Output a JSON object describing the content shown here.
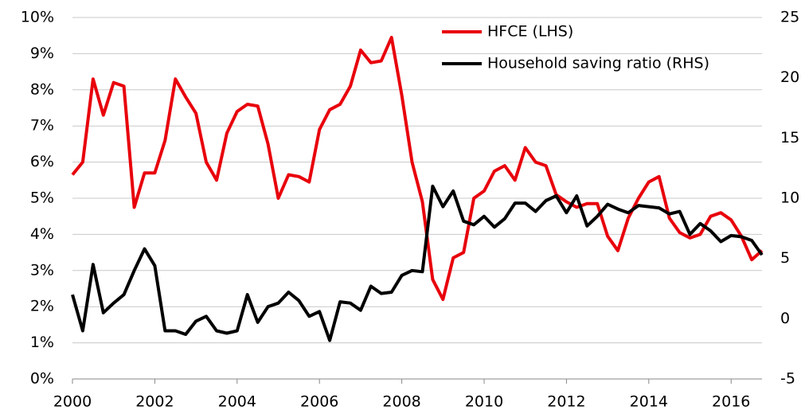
{
  "chart_data": {
    "type": "line",
    "x": [
      2000,
      2000.25,
      2000.5,
      2000.75,
      2001,
      2001.25,
      2001.5,
      2001.75,
      2002,
      2002.25,
      2002.5,
      2002.75,
      2003,
      2003.25,
      2003.5,
      2003.75,
      2004,
      2004.25,
      2004.5,
      2004.75,
      2005,
      2005.25,
      2005.5,
      2005.75,
      2006,
      2006.25,
      2006.5,
      2006.75,
      2007,
      2007.25,
      2007.5,
      2007.75,
      2008,
      2008.25,
      2008.5,
      2008.75,
      2009,
      2009.25,
      2009.5,
      2009.75,
      2010,
      2010.25,
      2010.5,
      2010.75,
      2011,
      2011.25,
      2011.5,
      2011.75,
      2012,
      2012.25,
      2012.5,
      2012.75,
      2013,
      2013.25,
      2013.5,
      2013.75,
      2014,
      2014.25,
      2014.5,
      2014.75,
      2015,
      2015.25,
      2015.5,
      2015.75,
      2016,
      2016.25,
      2016.5,
      2016.75
    ],
    "series": [
      {
        "name": "HFCE (LHS)",
        "color": "#e8000b",
        "values": [
          5.65,
          6.0,
          8.3,
          7.3,
          8.2,
          8.1,
          4.75,
          5.7,
          5.7,
          6.6,
          8.3,
          7.8,
          7.35,
          6.0,
          5.5,
          6.8,
          7.4,
          7.6,
          7.55,
          6.5,
          5.0,
          5.65,
          5.6,
          5.45,
          6.9,
          7.45,
          7.6,
          8.1,
          9.1,
          8.75,
          8.8,
          9.45,
          7.85,
          6.0,
          4.9,
          2.75,
          2.2,
          3.35,
          3.5,
          5.0,
          5.2,
          5.75,
          5.9,
          5.5,
          6.4,
          6.0,
          5.9,
          5.1,
          4.9,
          4.75,
          4.85,
          4.85,
          3.95,
          3.55,
          4.45,
          5.0,
          5.45,
          5.6,
          4.45,
          4.05,
          3.9,
          4.0,
          4.5,
          4.6,
          4.4,
          3.95,
          3.3,
          3.55
        ]
      },
      {
        "name": "Household saving ratio (RHS)",
        "color": "#000000",
        "axis": "y2",
        "values": [
          2.0,
          -1.0,
          4.5,
          0.5,
          1.3,
          2.0,
          4.0,
          5.8,
          4.4,
          -1.0,
          -1.0,
          -1.3,
          -0.2,
          0.2,
          -1.0,
          -1.2,
          -1.0,
          2.0,
          -0.3,
          1.0,
          1.3,
          2.2,
          1.5,
          0.2,
          0.6,
          -1.8,
          1.4,
          1.3,
          0.7,
          2.7,
          2.1,
          2.2,
          3.6,
          4.0,
          3.9,
          11.0,
          9.3,
          10.6,
          8.1,
          7.8,
          8.5,
          7.6,
          8.3,
          9.6,
          9.6,
          8.9,
          9.8,
          10.2,
          8.8,
          10.2,
          7.7,
          8.5,
          9.5,
          9.1,
          8.8,
          9.4,
          9.3,
          9.2,
          8.7,
          8.9,
          7.0,
          7.9,
          7.3,
          6.4,
          6.9,
          6.8,
          6.5,
          5.3
        ]
      }
    ],
    "xlim": [
      2000,
      2016.75
    ],
    "xticks": [
      2000,
      2002,
      2004,
      2006,
      2008,
      2010,
      2012,
      2014,
      2016
    ],
    "ylim": [
      0,
      10
    ],
    "yticks": [
      {
        "value": 0,
        "label": "0%"
      },
      {
        "value": 1,
        "label": "1%"
      },
      {
        "value": 2,
        "label": "2%"
      },
      {
        "value": 3,
        "label": "3%"
      },
      {
        "value": 4,
        "label": "4%"
      },
      {
        "value": 5,
        "label": "5%"
      },
      {
        "value": 6,
        "label": "6%"
      },
      {
        "value": 7,
        "label": "7%"
      },
      {
        "value": 8,
        "label": "8%"
      },
      {
        "value": 9,
        "label": "9%"
      },
      {
        "value": 10,
        "label": "10%"
      }
    ],
    "y2lim": [
      -5,
      25
    ],
    "y2ticks": [
      -5,
      0,
      5,
      10,
      15,
      20,
      25
    ],
    "grid": true,
    "legend": "upper right"
  }
}
